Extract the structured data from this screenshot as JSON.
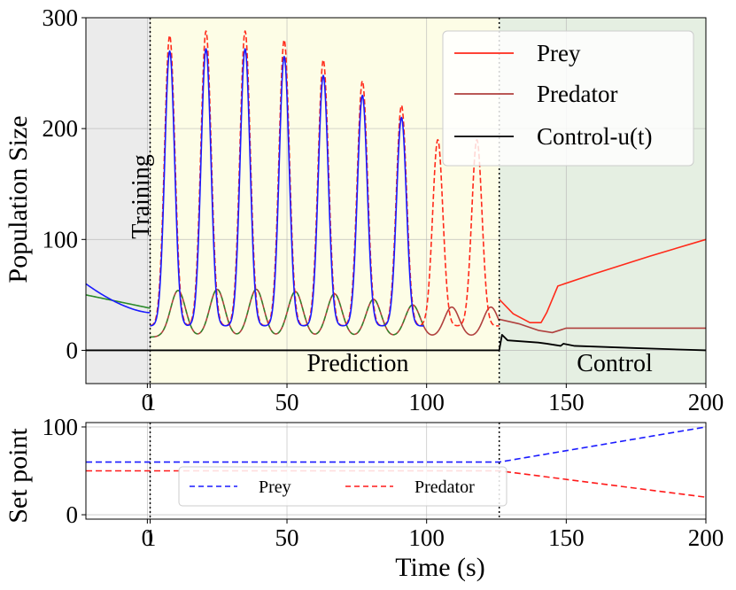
{
  "chart_data": [
    {
      "type": "line",
      "panel": "top",
      "ylabel": "Population Size",
      "xlim": [
        -22,
        200
      ],
      "ylim": [
        -30,
        300
      ],
      "xticks": [
        0,
        1,
        50,
        100,
        150,
        200
      ],
      "xtick_labels": [
        "0",
        "1",
        "50",
        "100",
        "150",
        "200"
      ],
      "yticks": [
        0,
        100,
        200,
        300
      ],
      "ytick_labels": [
        "0",
        "100",
        "200",
        "300"
      ],
      "regions": [
        {
          "name": "Training",
          "x0": -22,
          "x1": 1,
          "color": "#ebebeb"
        },
        {
          "name": "Prediction",
          "x0": 1,
          "x1": 126,
          "color": "#fdfde6"
        },
        {
          "name": "Control",
          "x0": 126,
          "x1": 200,
          "color": "#e5efe2"
        }
      ],
      "region_labels": {
        "training": "Training",
        "prediction": "Prediction",
        "control": "Control"
      },
      "boundaries": [
        1,
        126
      ],
      "prey_peaks": [
        [
          8,
          284
        ],
        [
          21,
          288
        ],
        [
          35,
          288
        ],
        [
          49,
          280
        ],
        [
          63,
          262
        ],
        [
          77,
          243
        ],
        [
          91,
          221
        ],
        [
          104,
          190
        ],
        [
          118,
          190
        ]
      ],
      "prey_fit_peaks": [
        [
          8,
          270
        ],
        [
          21,
          272
        ],
        [
          35,
          272
        ],
        [
          49,
          265
        ],
        [
          63,
          248
        ],
        [
          77,
          230
        ],
        [
          91,
          210
        ]
      ],
      "predator_peaks": [
        [
          11,
          54
        ],
        [
          25,
          55
        ],
        [
          39,
          55
        ],
        [
          53,
          53
        ],
        [
          67,
          51
        ],
        [
          81,
          46
        ],
        [
          95,
          41
        ],
        [
          109,
          39
        ],
        [
          123,
          39
        ]
      ],
      "series": [
        {
          "name": "Prey",
          "color": "#ff2a1a",
          "style": "solid"
        },
        {
          "name": "Predator",
          "color": "#b0413e",
          "style": "solid"
        },
        {
          "name": "Control-u(t)",
          "color": "#000000",
          "style": "solid"
        }
      ],
      "training_fit": {
        "prey_start": 60,
        "prey_end": 34,
        "predator_start": 50,
        "predator_end": 38
      },
      "control_phase": {
        "prey": [
          [
            126,
            46
          ],
          [
            131,
            33
          ],
          [
            137,
            25
          ],
          [
            141,
            25
          ],
          [
            143,
            34
          ],
          [
            147,
            58
          ],
          [
            160,
            69
          ],
          [
            180,
            85
          ],
          [
            200,
            100
          ]
        ],
        "predator": [
          [
            126,
            28
          ],
          [
            133,
            24
          ],
          [
            140,
            18
          ],
          [
            145,
            16
          ],
          [
            150,
            20
          ],
          [
            200,
            20
          ]
        ],
        "control": [
          [
            126,
            0
          ],
          [
            127,
            14
          ],
          [
            129,
            9
          ],
          [
            140,
            7
          ],
          [
            143,
            6
          ],
          [
            148,
            4
          ],
          [
            149,
            6
          ],
          [
            153,
            4
          ],
          [
            175,
            2
          ],
          [
            200,
            0
          ]
        ]
      },
      "legend": {
        "position": "upper right",
        "entries": [
          "Prey",
          "Predator",
          "Control-u(t)"
        ]
      }
    },
    {
      "type": "line",
      "panel": "bottom",
      "xlabel": "Time (s)",
      "ylabel": "Set point",
      "xlim": [
        -22,
        200
      ],
      "ylim": [
        -5,
        105
      ],
      "xticks": [
        0,
        1,
        50,
        100,
        150,
        200
      ],
      "xtick_labels": [
        "0",
        "1",
        "50",
        "100",
        "150",
        "200"
      ],
      "yticks": [
        0,
        100
      ],
      "ytick_labels": [
        "0",
        "100"
      ],
      "boundaries": [
        1,
        126
      ],
      "series": [
        {
          "name": "Prey",
          "color": "#1a1aff",
          "style": "dashed",
          "x": [
            -22,
            126,
            200
          ],
          "y": [
            60,
            60,
            100
          ]
        },
        {
          "name": "Predator",
          "color": "#ff1a1a",
          "style": "dashed",
          "x": [
            -22,
            126,
            200
          ],
          "y": [
            50,
            50,
            20
          ]
        }
      ],
      "legend": {
        "position": "center",
        "entries": [
          "Prey",
          "Predator"
        ]
      }
    }
  ]
}
